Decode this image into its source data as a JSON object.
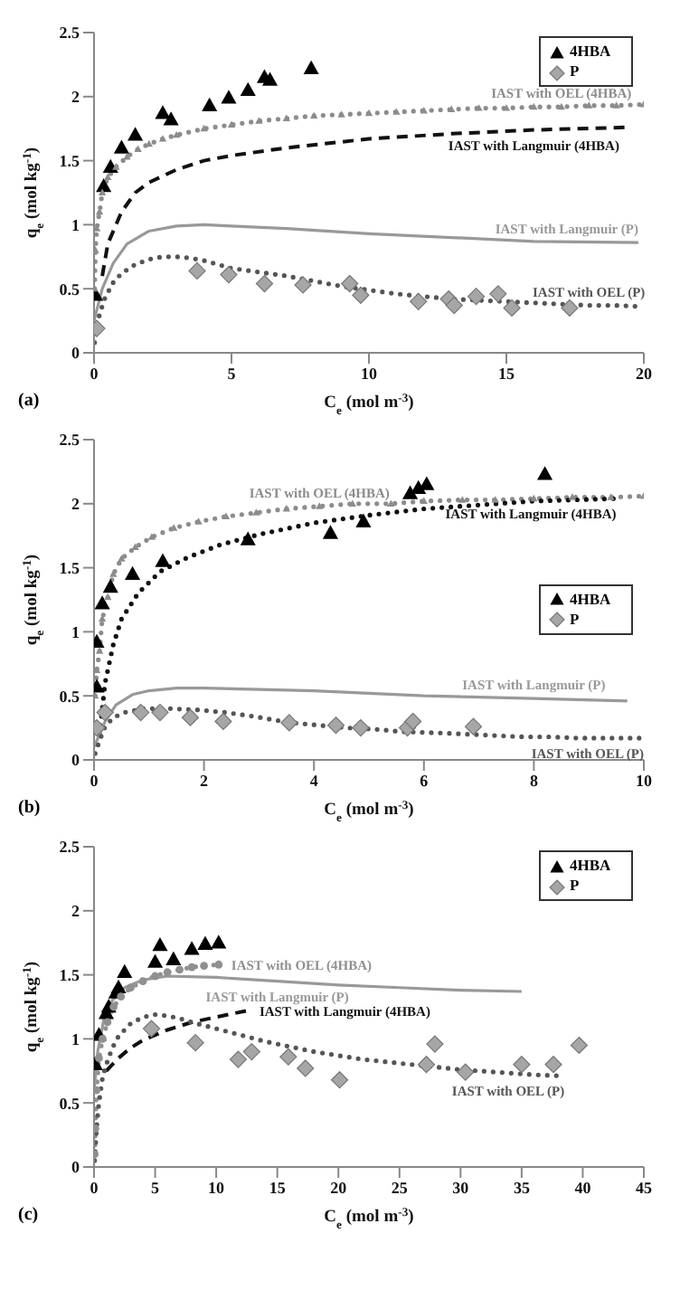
{
  "chart_data": [
    {
      "type": "scatter",
      "xlabel": "C$_{e}$ (mol m$^{-3}$)",
      "ylabel": "q$_{e}$ (mol kg$^{-1}$)",
      "xlim": [
        0,
        20
      ],
      "xticks": [
        0,
        5,
        10,
        15,
        20
      ],
      "ylim": [
        0,
        2.5
      ],
      "yticks": [
        0,
        0.5,
        1,
        1.5,
        2,
        2.5
      ],
      "legend": "top right",
      "annotations": [
        "(a)"
      ],
      "series": [
        {
          "name": "4HBA",
          "marker": "triangle",
          "color": "#000000",
          "x": [
            0.05,
            0.35,
            0.6,
            1.0,
            1.5,
            2.5,
            2.8,
            4.2,
            4.9,
            5.6,
            6.2,
            6.4,
            7.9
          ],
          "values": [
            0.45,
            1.3,
            1.45,
            1.6,
            1.7,
            1.87,
            1.82,
            1.93,
            1.99,
            2.05,
            2.15,
            2.13,
            2.22
          ]
        },
        {
          "name": "P",
          "marker": "diamond",
          "color": "#a6a6a6",
          "x": [
            0.1,
            3.75,
            4.9,
            6.2,
            7.6,
            9.3,
            9.7,
            11.8,
            12.9,
            13.1,
            13.9,
            14.7,
            15.2,
            17.3
          ],
          "values": [
            0.19,
            0.64,
            0.61,
            0.54,
            0.53,
            0.54,
            0.45,
            0.4,
            0.42,
            0.37,
            0.44,
            0.46,
            0.35,
            0.35
          ]
        },
        {
          "name": "IAST with OEL (4HBA)",
          "type": "line",
          "line_style": "dotted",
          "marker": "triangle",
          "color": "#8c8c8c",
          "x": [
            0.02,
            0.05,
            0.1,
            0.2,
            0.3,
            0.5,
            0.8,
            1.2,
            1.6,
            2,
            2.5,
            3,
            4,
            5,
            6,
            7,
            8,
            9,
            10,
            11,
            12,
            13,
            14,
            15,
            16,
            17,
            18,
            19,
            20
          ],
          "values": [
            0.5,
            0.8,
            0.97,
            1.1,
            1.25,
            1.37,
            1.45,
            1.53,
            1.59,
            1.63,
            1.67,
            1.7,
            1.75,
            1.78,
            1.81,
            1.83,
            1.85,
            1.86,
            1.87,
            1.88,
            1.89,
            1.9,
            1.91,
            1.91,
            1.92,
            1.92,
            1.93,
            1.93,
            1.94
          ]
        },
        {
          "name": "IAST with Langmuir (4HBA)",
          "type": "line",
          "line_style": "dashed",
          "color": "#111111",
          "x": [
            0.3,
            0.5,
            1,
            1.5,
            2,
            3,
            4,
            5,
            7,
            10,
            13,
            16,
            19.4
          ],
          "values": [
            0.6,
            0.85,
            1.1,
            1.25,
            1.33,
            1.43,
            1.5,
            1.54,
            1.6,
            1.67,
            1.71,
            1.74,
            1.76
          ]
        },
        {
          "name": "IAST with Langmuir (P)",
          "type": "line",
          "line_style": "solid",
          "color": "#999999",
          "x": [
            0,
            0.3,
            0.7,
            1.2,
            2,
            3,
            4,
            5,
            7,
            10,
            13,
            16,
            19.8
          ],
          "values": [
            0.25,
            0.5,
            0.7,
            0.85,
            0.95,
            0.99,
            1.0,
            0.99,
            0.97,
            0.93,
            0.9,
            0.87,
            0.86
          ]
        },
        {
          "name": "IAST with OEL (P)",
          "type": "line",
          "line_style": "dotted",
          "color": "#555555",
          "x": [
            0.02,
            0.1,
            0.2,
            0.4,
            0.7,
            1,
            1.5,
            2,
            2.5,
            3,
            3.5,
            4,
            4.5,
            5,
            6,
            7,
            8,
            9,
            10,
            11,
            12,
            13,
            14,
            15,
            16,
            17,
            18,
            19,
            20
          ],
          "values": [
            0.08,
            0.2,
            0.3,
            0.43,
            0.55,
            0.62,
            0.69,
            0.73,
            0.75,
            0.75,
            0.74,
            0.72,
            0.69,
            0.66,
            0.63,
            0.6,
            0.56,
            0.52,
            0.49,
            0.46,
            0.44,
            0.42,
            0.41,
            0.4,
            0.39,
            0.38,
            0.37,
            0.37,
            0.36
          ]
        }
      ]
    },
    {
      "type": "scatter",
      "xlabel": "C$_{e}$ (mol m$^{-3}$)",
      "ylabel": "q$_{e}$ (mol kg$^{-1}$)",
      "xlim": [
        0,
        10
      ],
      "xticks": [
        0,
        2,
        4,
        6,
        8,
        10
      ],
      "ylim": [
        0,
        2.5
      ],
      "yticks": [
        0,
        0.5,
        1,
        1.5,
        2,
        2.5
      ],
      "legend": "right",
      "annotations": [
        "(b)"
      ],
      "series": [
        {
          "name": "4HBA",
          "marker": "triangle",
          "color": "#000000",
          "x": [
            0.05,
            0.05,
            0.15,
            0.3,
            0.7,
            1.25,
            2.8,
            4.3,
            4.9,
            5.75,
            5.9,
            6.05,
            8.2
          ],
          "values": [
            0.57,
            0.92,
            1.22,
            1.35,
            1.45,
            1.55,
            1.72,
            1.77,
            1.86,
            2.08,
            2.12,
            2.15,
            2.23
          ]
        },
        {
          "name": "P",
          "marker": "diamond",
          "color": "#a6a6a6",
          "x": [
            0.05,
            0.2,
            0.85,
            1.2,
            1.75,
            2.35,
            3.55,
            4.4,
            4.85,
            5.7,
            5.8,
            6.9
          ],
          "values": [
            0.25,
            0.37,
            0.37,
            0.37,
            0.33,
            0.3,
            0.29,
            0.27,
            0.25,
            0.25,
            0.3,
            0.26
          ]
        },
        {
          "name": "IAST with OEL (4HBA)",
          "type": "line",
          "line_style": "dotted",
          "marker": "triangle",
          "color": "#8c8c8c",
          "x": [
            0.02,
            0.05,
            0.1,
            0.15,
            0.25,
            0.35,
            0.5,
            0.75,
            1.05,
            1.45,
            1.9,
            2.4,
            2.95,
            3.5,
            4.1,
            4.7,
            5.4,
            6,
            6.7,
            7.3,
            8,
            8.7,
            9.4,
            10
          ],
          "values": [
            0.5,
            0.7,
            0.85,
            1.1,
            1.27,
            1.45,
            1.57,
            1.66,
            1.74,
            1.81,
            1.86,
            1.9,
            1.93,
            1.96,
            1.98,
            2.0,
            2.0,
            2.02,
            2.03,
            2.03,
            2.04,
            2.05,
            2.05,
            2.06
          ]
        },
        {
          "name": "IAST with Langmuir (4HBA)",
          "type": "line",
          "line_style": "dotted",
          "color": "#111111",
          "x": [
            0.1,
            0.2,
            0.35,
            0.5,
            0.8,
            1.2,
            1.7,
            2.3,
            3,
            4,
            5,
            6,
            7,
            8,
            9.5
          ],
          "values": [
            0.2,
            0.6,
            0.9,
            1.1,
            1.3,
            1.47,
            1.58,
            1.68,
            1.76,
            1.85,
            1.91,
            1.96,
            1.99,
            2.02,
            2.04
          ]
        },
        {
          "name": "IAST with Langmuir (P)",
          "type": "line",
          "line_style": "solid",
          "color": "#999999",
          "x": [
            0,
            0.2,
            0.4,
            0.7,
            1,
            1.5,
            2,
            3,
            4,
            5,
            6,
            7,
            8,
            9.7
          ],
          "values": [
            0.1,
            0.3,
            0.43,
            0.51,
            0.54,
            0.56,
            0.56,
            0.55,
            0.54,
            0.52,
            0.5,
            0.49,
            0.48,
            0.46
          ]
        },
        {
          "name": "IAST with OEL (P)",
          "type": "line",
          "line_style": "dotted",
          "color": "#555555",
          "x": [
            0.02,
            0.1,
            0.2,
            0.35,
            0.55,
            0.9,
            1.4,
            1.9,
            2.4,
            2.9,
            3.3,
            3.6,
            4.1,
            4.6,
            5.1,
            5.6,
            6.3,
            6.8,
            7.3,
            7.8,
            8.3,
            8.8,
            9.4,
            10
          ],
          "values": [
            0.05,
            0.15,
            0.26,
            0.33,
            0.37,
            0.4,
            0.4,
            0.39,
            0.37,
            0.34,
            0.31,
            0.29,
            0.27,
            0.25,
            0.24,
            0.22,
            0.21,
            0.2,
            0.19,
            0.18,
            0.18,
            0.17,
            0.17,
            0.17
          ]
        }
      ]
    },
    {
      "type": "scatter",
      "xlabel": "C$_{e}$ (mol m$^{-3}$)",
      "ylabel": "q$_{e}$ (mol kg$^{-1}$)",
      "xlim": [
        0,
        45
      ],
      "xticks": [
        0,
        5,
        10,
        15,
        20,
        25,
        30,
        35,
        40,
        45
      ],
      "ylim": [
        0,
        2.5
      ],
      "yticks": [
        0,
        0.5,
        1,
        1.5,
        2,
        2.5
      ],
      "legend": "top right",
      "annotations": [
        "(c)"
      ],
      "series": [
        {
          "name": "4HBA",
          "marker": "triangle",
          "color": "#000000",
          "x": [
            0.1,
            0.4,
            1.0,
            1.2,
            1.8,
            2.0,
            2.5,
            5.0,
            5.4,
            6.5,
            8.0,
            9.1,
            10.2
          ],
          "values": [
            0.8,
            1.03,
            1.2,
            1.25,
            1.36,
            1.4,
            1.52,
            1.6,
            1.73,
            1.62,
            1.7,
            1.74,
            1.75
          ]
        },
        {
          "name": "P",
          "marker": "diamond",
          "color": "#a6a6a6",
          "x": [
            4.7,
            8.3,
            11.8,
            12.9,
            15.9,
            17.3,
            20.1,
            27.2,
            27.9,
            30.4,
            35,
            37.6,
            39.7
          ],
          "values": [
            1.08,
            0.97,
            0.84,
            0.9,
            0.86,
            0.77,
            0.68,
            0.8,
            0.96,
            0.74,
            0.8,
            0.8,
            0.95
          ]
        },
        {
          "name": "IAST with OEL (4HBA)",
          "type": "line",
          "line_style": "dotted",
          "marker": "circle",
          "color": "#909090",
          "x": [
            0.05,
            0.1,
            0.2,
            0.4,
            0.7,
            1.1,
            1.6,
            2.2,
            3,
            4,
            5,
            6,
            7,
            8,
            9,
            10.2
          ],
          "values": [
            0.1,
            0.3,
            0.6,
            0.85,
            1.0,
            1.13,
            1.25,
            1.33,
            1.4,
            1.45,
            1.49,
            1.52,
            1.54,
            1.56,
            1.57,
            1.58
          ]
        },
        {
          "name": "IAST with Langmuir (4HBA)",
          "type": "line",
          "line_style": "dashed",
          "color": "#111111",
          "x": [
            1,
            2,
            3,
            4,
            5,
            6,
            8,
            10,
            12.5
          ],
          "values": [
            0.75,
            0.85,
            0.93,
            0.99,
            1.03,
            1.07,
            1.13,
            1.17,
            1.22
          ]
        },
        {
          "name": "IAST with Langmuir (P)",
          "type": "line",
          "line_style": "solid",
          "color": "#999999",
          "x": [
            0,
            0.3,
            0.8,
            1.5,
            2.5,
            4,
            6,
            10,
            15,
            20,
            25,
            30,
            35
          ],
          "values": [
            0.6,
            0.9,
            1.15,
            1.3,
            1.4,
            1.46,
            1.49,
            1.48,
            1.45,
            1.42,
            1.4,
            1.38,
            1.37
          ]
        },
        {
          "name": "IAST with OEL (P)",
          "type": "line",
          "line_style": "dotted",
          "color": "#555555",
          "x": [
            0.05,
            0.2,
            0.4,
            0.7,
            1,
            1.5,
            2,
            3,
            4,
            5,
            6,
            7,
            8,
            10,
            12,
            14,
            16,
            18,
            20,
            22,
            25,
            28,
            30,
            33,
            36,
            38.5
          ],
          "values": [
            0.05,
            0.3,
            0.5,
            0.7,
            0.8,
            0.93,
            1.02,
            1.12,
            1.17,
            1.19,
            1.18,
            1.16,
            1.13,
            1.08,
            1.03,
            0.98,
            0.94,
            0.9,
            0.87,
            0.84,
            0.81,
            0.78,
            0.76,
            0.74,
            0.72,
            0.71
          ]
        }
      ]
    }
  ]
}
